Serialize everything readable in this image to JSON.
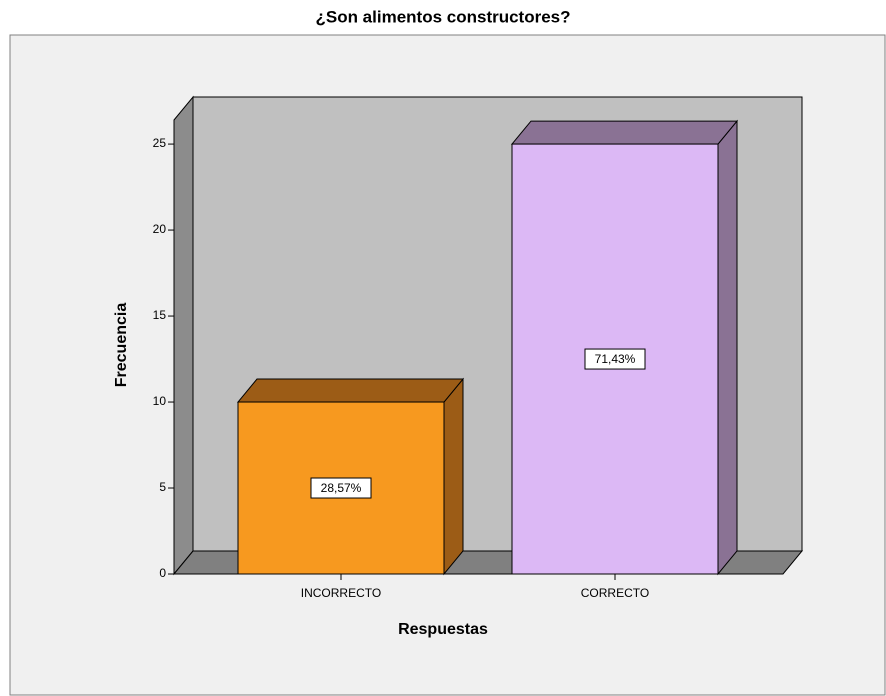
{
  "chart_data": {
    "type": "bar3d",
    "title": "¿Son alimentos constructores?",
    "x_label": "Respuestas",
    "y_label": "Frecuencia",
    "categories": [
      "INCORRECTO",
      "CORRECTO"
    ],
    "values": [
      10,
      25
    ],
    "percent_labels": [
      "28,57%",
      "71,43%"
    ],
    "colors": [
      "#f7991f",
      "#dcb8f5"
    ],
    "shade_colors": [
      "#9c5c16",
      "#8a7294"
    ],
    "ylim": [
      0,
      26.4
    ],
    "yticks": [
      0,
      5,
      10,
      15,
      20,
      25
    ]
  }
}
